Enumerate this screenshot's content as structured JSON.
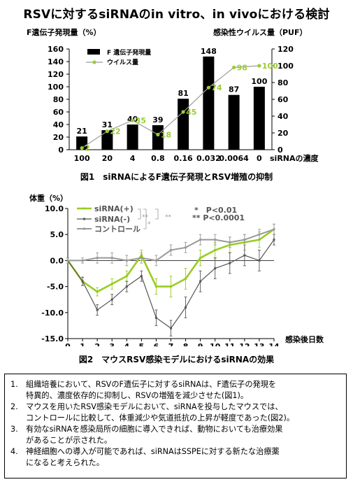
{
  "page": {
    "title": "RSVに対するsiRNAのin vitro、in vivoにおける検討"
  },
  "figure1": {
    "caption": "図1　siRNAによるF遺伝子発現とRSV増殖の抑制"
  },
  "figure2": {
    "caption": "図2　マウスRSV感染モデルにおけるsiRNAの効果"
  },
  "conclusions": [
    {
      "num": "1.",
      "text": "組織培養において、RSVのF遺伝子に対するsiRNAは、F遺伝子の発現を\n特異的、濃度依存的に抑制し、RSVの増殖を減少させた(図1)。"
    },
    {
      "num": "2.",
      "text": "マウスを用いたRSV感染モデルにおいて、siRNAを投与したマウスでは、\nコントロールに比較して、体重減少や気道抵抗の上昇が軽度であった(図2)。"
    },
    {
      "num": "3.",
      "text": "有効なsiRNAを感染局所の細胞に導入できれば、動物においても治療効果\nがあることが示された。"
    },
    {
      "num": "4.",
      "text": "神経細胞への導入が可能であれば、siRNAはSSPEに対する新たな治療薬\nになると考えられた。"
    }
  ],
  "chart_data": [
    {
      "type": "bar",
      "title": "",
      "xlabel": "siRNAの濃度",
      "categories": [
        "100",
        "20",
        "4",
        "0.8",
        "0.16",
        "0.032",
        "0.0064",
        "0"
      ],
      "ylabel_left": "F遺伝子発現量（%）",
      "ylabel_right": "感染性ウイルス量（PUF）",
      "ylim_left": [
        0,
        160
      ],
      "ylim_right": [
        0,
        120
      ],
      "yticks_left": [
        0,
        20,
        40,
        60,
        80,
        100,
        120,
        140,
        160
      ],
      "yticks_right": [
        0,
        20,
        40,
        60,
        80,
        100,
        120
      ],
      "legend_position": "top-left",
      "series": [
        {
          "name": "F 遺伝子発現量",
          "kind": "bar",
          "axis": "left",
          "color": "#000000",
          "values": [
            21,
            31,
            40,
            39,
            81,
            148,
            87,
            100
          ]
        },
        {
          "name": "ウイルス量",
          "kind": "line",
          "axis": "right",
          "color": "#9acd32",
          "line_color": "#9a9a9a",
          "values": [
            2,
            22,
            35,
            18,
            45,
            74,
            98,
            100
          ]
        }
      ]
    },
    {
      "type": "line",
      "title": "",
      "ylabel": "体重（%）",
      "xlabel": "感染後日数",
      "x": [
        0,
        1,
        2,
        3,
        4,
        5,
        6,
        7,
        8,
        9,
        10,
        11,
        12,
        13,
        14
      ],
      "ylim": [
        -15,
        10
      ],
      "yticks": [
        -15,
        -10,
        -5,
        0,
        5,
        10
      ],
      "ytick_labels": [
        "-15.0",
        "-10.0",
        "-5.0",
        "0.0",
        "5.0",
        "10.0"
      ],
      "legend_position": "top-left",
      "series": [
        {
          "name": "siRNA(+)",
          "color": "#99cc22",
          "values": [
            0,
            -4,
            -6,
            -4.5,
            -3,
            1,
            -5,
            -5,
            -3.5,
            0.5,
            2,
            3,
            3.5,
            4,
            6
          ],
          "errors": [
            0.5,
            0.8,
            0.8,
            1,
            1,
            1,
            1.5,
            2,
            2,
            1.5,
            1.5,
            1.5,
            1.5,
            1.5,
            1
          ]
        },
        {
          "name": "siRNA(-)",
          "color": "#555555",
          "values": [
            0,
            -4,
            -9.5,
            -7.5,
            -5,
            -3,
            -11,
            -13,
            -9,
            -4,
            -1.5,
            -0.5,
            1,
            0,
            4
          ],
          "errors": [
            0.5,
            0.8,
            1,
            1,
            1,
            1,
            1.5,
            1.5,
            2,
            2,
            2,
            2,
            2,
            2,
            1
          ]
        },
        {
          "name": "コントロール",
          "color": "#999999",
          "values": [
            0,
            0,
            0.5,
            0.5,
            0,
            0.5,
            0,
            2,
            2.5,
            4,
            4,
            3.5,
            4,
            5,
            6
          ],
          "errors": [
            0.5,
            0.5,
            1,
            1,
            1,
            1,
            1,
            1,
            1,
            1,
            1,
            1,
            1,
            1,
            1
          ]
        }
      ],
      "annotations": [
        "*　P<0.01",
        "**  P<0.0001"
      ],
      "significance_marks": [
        "**",
        "**",
        "*"
      ]
    }
  ]
}
